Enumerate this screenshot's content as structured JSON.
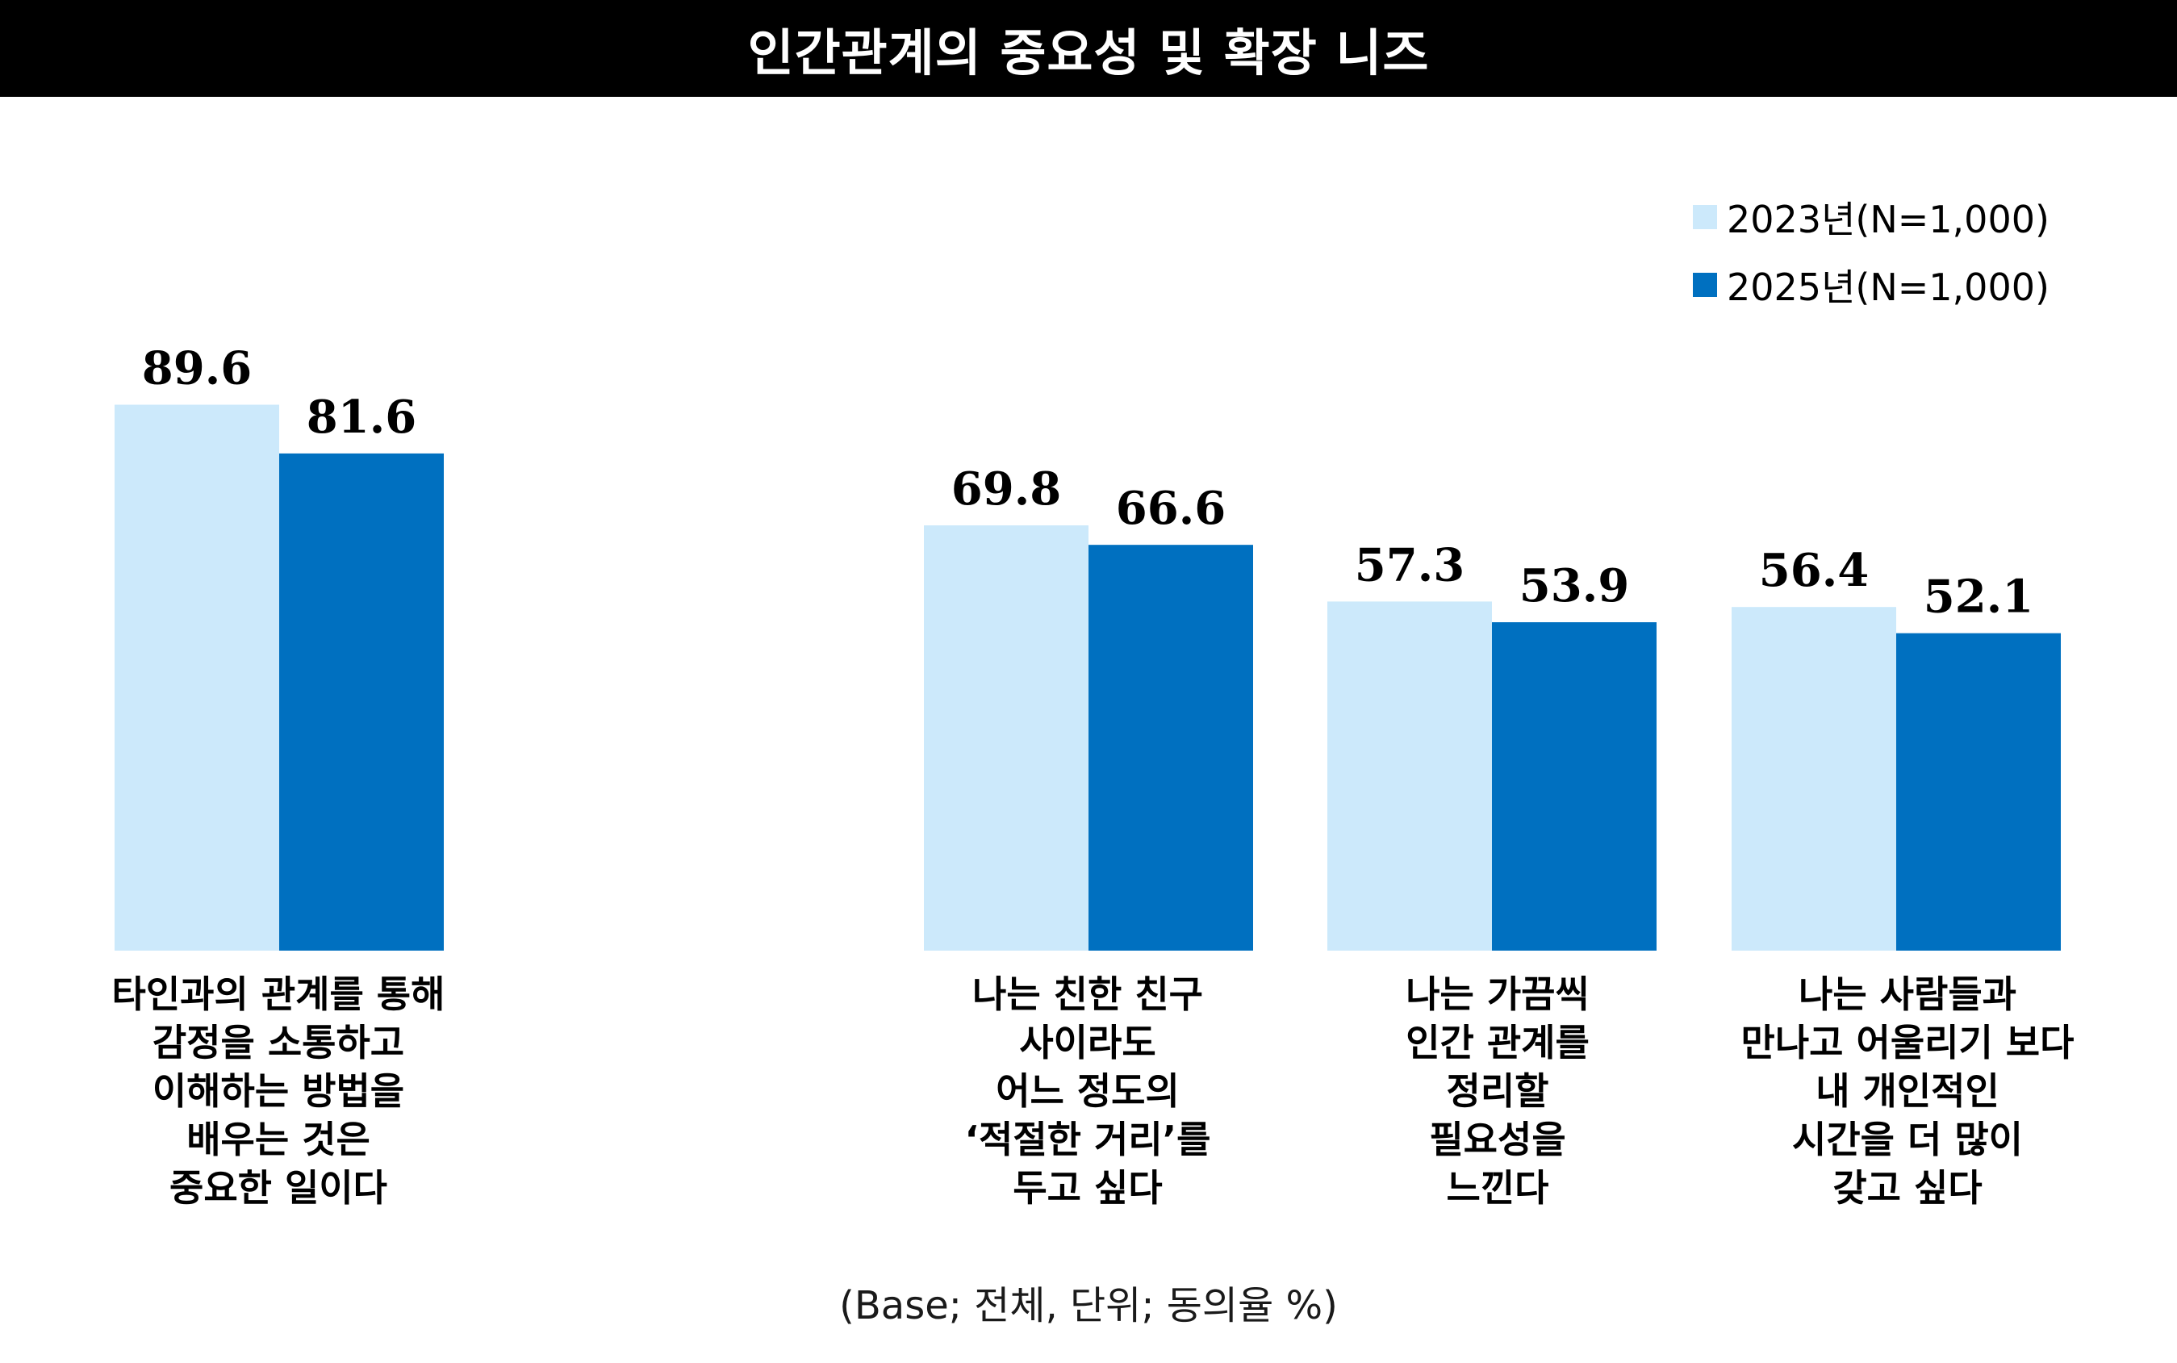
{
  "title": "인간관계의 중요성 및 확장 니즈",
  "footnote": "(Base; 전체, 단위; 동의율 %)",
  "colors": {
    "series_2023": "#CCE9FB",
    "series_2025": "#0070C0",
    "title_bar": "#000000"
  },
  "legend": [
    {
      "label": "2023년(N=1,000)",
      "color": "#CCE9FB"
    },
    {
      "label": "2025년(N=1,000)",
      "color": "#0070C0"
    }
  ],
  "chart_data": {
    "type": "bar",
    "title": "인간관계의 중요성 및 확장 니즈",
    "categories": [
      "타인과의 관계를 통해 감정을 소통하고 이해하는 방법을 배우는 것은 중요한 일이다",
      "나는 친한 친구 사이라도 어느 정도의 ‘적절한 거리’를 두고 싶다",
      "나는 가끔씩 인간 관계를 정리할 필요성을 느낀다",
      "나는 사람들과 만나고 어울리기 보다 내 개인적인 시간을 더 많이 갖고 싶다"
    ],
    "category_lines": [
      [
        "타인과의 관계를 통해",
        "감정을 소통하고",
        "이해하는 방법을",
        "배우는 것은",
        "중요한 일이다"
      ],
      [
        "나는 친한 친구",
        "사이라도",
        "어느 정도의",
        "‘적절한 거리’를",
        "두고 싶다"
      ],
      [
        "나는 가끔씩",
        "인간 관계를",
        "정리할",
        "필요성을",
        "느낀다"
      ],
      [
        "나는 사람들과",
        "만나고 어울리기 보다",
        "내 개인적인",
        "시간을 더 많이",
        "갖고 싶다"
      ]
    ],
    "series": [
      {
        "name": "2023년(N=1,000)",
        "values": [
          89.6,
          69.8,
          57.3,
          56.4
        ],
        "labels": [
          "89.6",
          "69.8",
          "57.3",
          "56.4"
        ]
      },
      {
        "name": "2025년(N=1,000)",
        "values": [
          81.6,
          66.6,
          53.9,
          52.1
        ],
        "labels": [
          "81.6",
          "66.6",
          "53.9",
          "52.1"
        ]
      }
    ],
    "ylim": [
      0,
      100
    ],
    "xlabel": "",
    "ylabel": "",
    "grid": false,
    "legend_position": "top-right"
  }
}
